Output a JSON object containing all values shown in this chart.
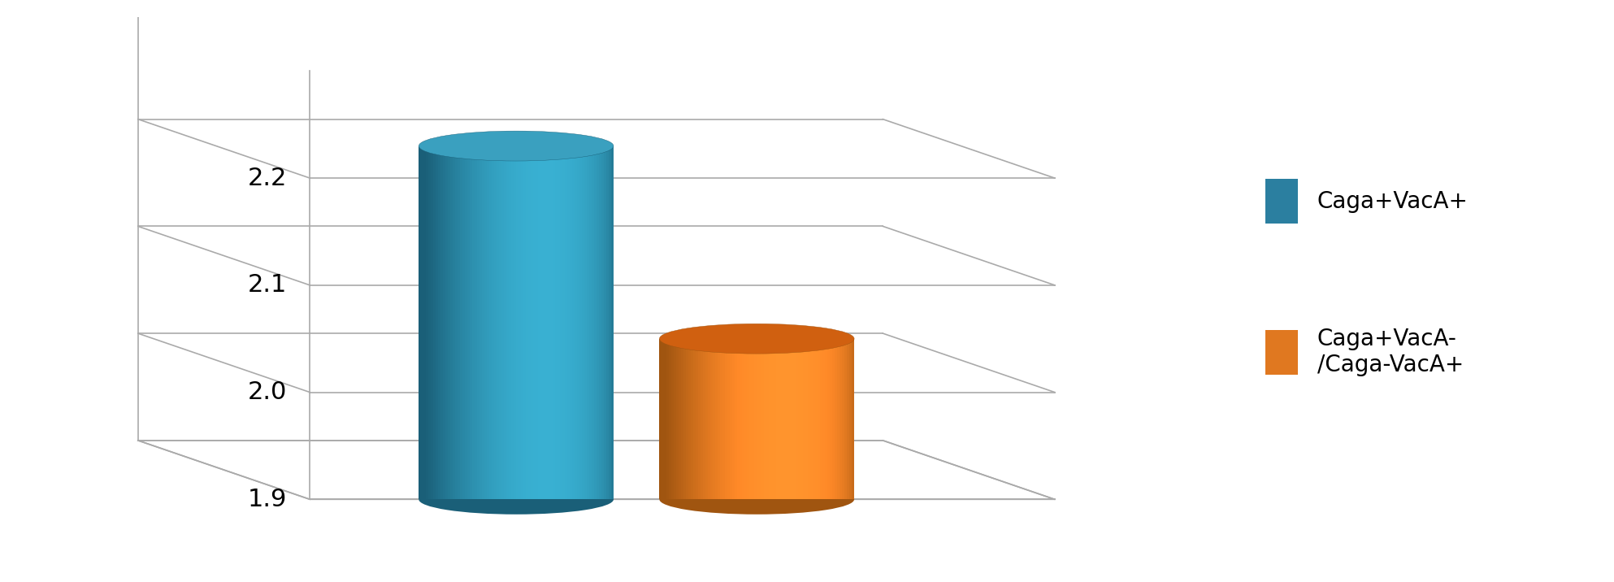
{
  "values": [
    2.23,
    2.05
  ],
  "bar_colors_main": [
    "#2b8caa",
    "#e07820"
  ],
  "bar_colors_dark": [
    "#1a5f78",
    "#a05510"
  ],
  "bar_colors_light": [
    "#4db8d4",
    "#f0a050"
  ],
  "bar_colors_top": [
    "#3aa0bf",
    "#d06010"
  ],
  "ylim": [
    1.9,
    2.3
  ],
  "yticks": [
    1.9,
    2.0,
    2.1,
    2.2
  ],
  "background_color": "#ffffff",
  "legend_labels": [
    "Caga+VacA+",
    "Caga+VacA-\n/Caga-VacA+"
  ],
  "legend_colors": [
    "#2b7fa0",
    "#e07820"
  ],
  "grid_color": "#aaaaaa",
  "grid_lw": 1.2
}
